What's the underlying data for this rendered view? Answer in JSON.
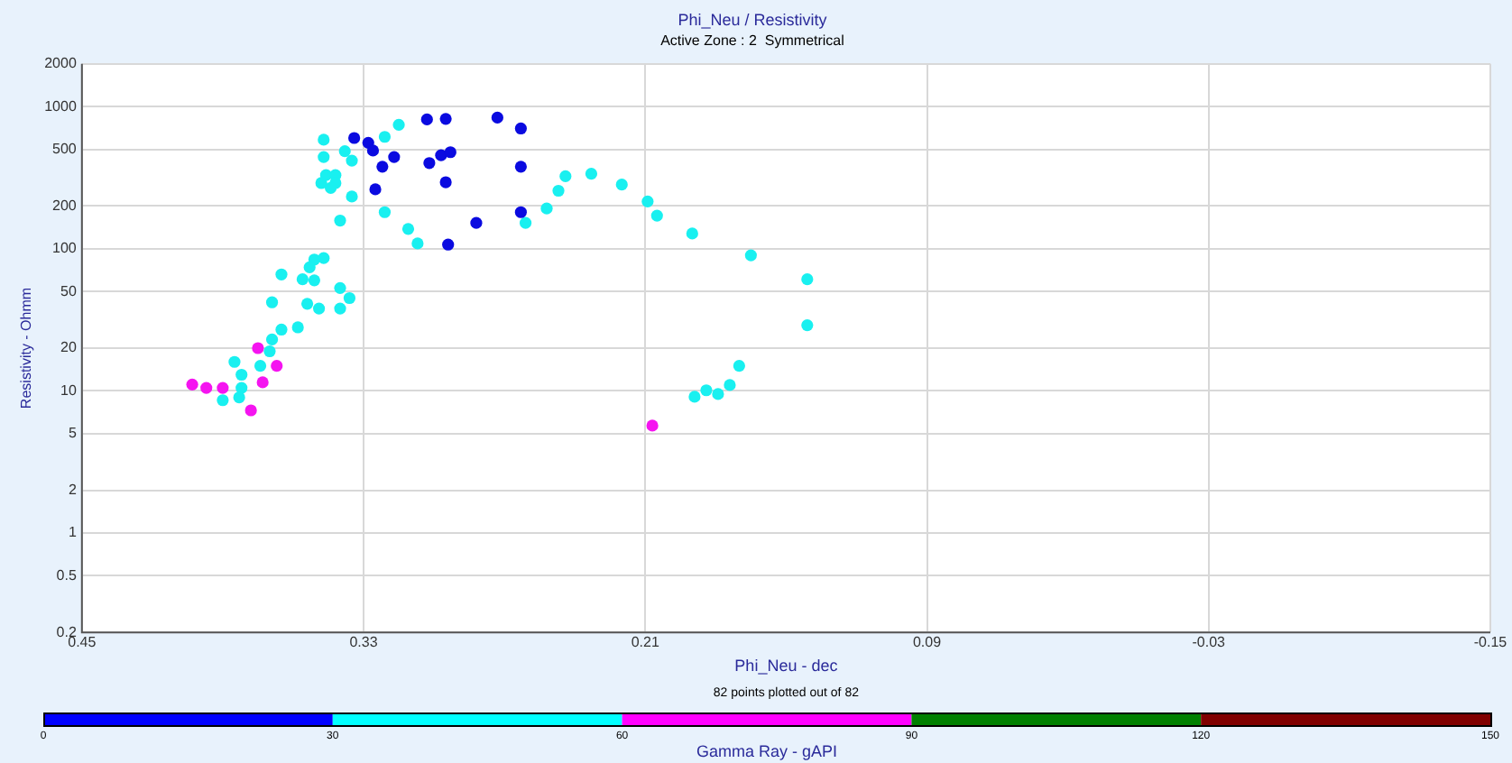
{
  "chart_data": {
    "type": "scatter",
    "title": "Phi_Neu / Resistivity",
    "subtitle": "Active Zone : 2  Symmetrical",
    "xlabel": "Phi_Neu - dec",
    "ylabel": "Resistivity - Ohmm",
    "annotations": [
      "82 points plotted out of 82"
    ],
    "clabel": "Gamma Ray - gAPI",
    "clim": [
      0,
      150
    ],
    "cticks": [
      0,
      30,
      60,
      90,
      120,
      150
    ],
    "colors": [
      "#0000ff",
      "#00ffff",
      "#ff00ff",
      "#008000",
      "#800000"
    ],
    "xlim": [
      0.45,
      -0.15
    ],
    "xticks": [
      0.45,
      0.33,
      0.21,
      0.09,
      -0.03,
      -0.15
    ],
    "ylim": [
      0.2,
      2000
    ],
    "yticks": [
      0.2,
      0.5,
      1,
      2,
      5,
      10,
      20,
      50,
      100,
      200,
      500,
      1000,
      2000
    ],
    "log": "y",
    "grid": true,
    "marker": "circle",
    "series": [
      {
        "color": "#0a0ae0",
        "x": [
          0.334,
          0.328,
          0.326,
          0.322,
          0.317,
          0.325,
          0.303,
          0.295,
          0.302,
          0.297,
          0.293,
          0.295,
          0.273,
          0.263,
          0.263,
          0.263,
          0.282,
          0.294
        ],
        "values": [
          602,
          557,
          491,
          378,
          442,
          262,
          813,
          820,
          401,
          455,
          478,
          294,
          837,
          702,
          378,
          181,
          152,
          107
        ]
      },
      {
        "color": "#19f0f0",
        "x": [
          0.347,
          0.338,
          0.347,
          0.335,
          0.321,
          0.315,
          0.346,
          0.342,
          0.348,
          0.342,
          0.344,
          0.335,
          0.34,
          0.321,
          0.311,
          0.307,
          0.261,
          0.252,
          0.247,
          0.244,
          0.233,
          0.22,
          0.209,
          0.205,
          0.19,
          0.141,
          0.165,
          0.141,
          0.17,
          0.174,
          0.179,
          0.184,
          0.189,
          0.351,
          0.347,
          0.353,
          0.365,
          0.356,
          0.351,
          0.34,
          0.336,
          0.34,
          0.349,
          0.354,
          0.369,
          0.358,
          0.365,
          0.369,
          0.37,
          0.385,
          0.374,
          0.382,
          0.382,
          0.383,
          0.39
        ],
        "values": [
          585,
          486,
          442,
          417,
          613,
          745,
          330,
          330,
          290,
          290,
          268,
          233,
          158,
          181,
          138,
          109,
          152,
          192,
          256,
          324,
          337,
          283,
          215,
          171,
          128,
          61,
          90,
          29,
          15,
          11,
          9.5,
          10.1,
          9.1,
          84,
          86,
          74,
          66,
          61,
          60,
          53,
          45,
          38,
          38,
          41,
          42,
          28,
          27,
          23,
          19,
          16,
          15,
          13,
          10.5,
          9.0,
          8.6
        ]
      },
      {
        "color": "#f514f0",
        "x": [
          0.375,
          0.367,
          0.373,
          0.403,
          0.397,
          0.39,
          0.378,
          0.207
        ],
        "values": [
          20,
          15,
          11.5,
          11.1,
          10.5,
          10.5,
          7.3,
          5.7
        ]
      }
    ]
  }
}
